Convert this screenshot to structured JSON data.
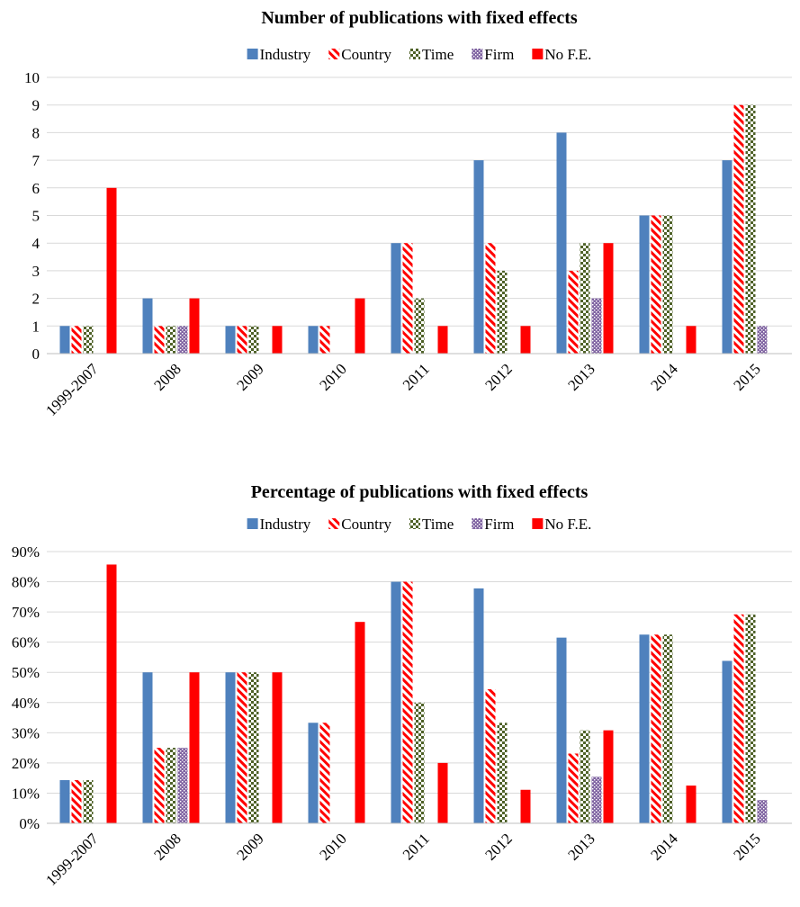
{
  "chart_data": [
    {
      "type": "bar",
      "title": "Number of publications with fixed effects",
      "xlabel": "",
      "ylabel": "",
      "categories": [
        "1999-2007",
        "2008",
        "2009",
        "2010",
        "2011",
        "2012",
        "2013",
        "2014",
        "2015"
      ],
      "series": [
        {
          "name": "Industry",
          "values": [
            1,
            2,
            1,
            1,
            4,
            7,
            8,
            5,
            7
          ],
          "color": "#4f81bd",
          "pattern": "solid"
        },
        {
          "name": "Country",
          "values": [
            1,
            1,
            1,
            1,
            4,
            4,
            3,
            5,
            9
          ],
          "color": "#ff0000",
          "pattern": "diagonal-stripes"
        },
        {
          "name": "Time",
          "values": [
            1,
            1,
            1,
            0,
            2,
            3,
            4,
            5,
            9
          ],
          "color": "#4f6228",
          "pattern": "checker"
        },
        {
          "name": "Firm",
          "values": [
            0,
            1,
            0,
            0,
            0,
            0,
            2,
            0,
            1
          ],
          "color": "#8064a2",
          "pattern": "dots"
        },
        {
          "name": "No F.E.",
          "values": [
            6,
            2,
            1,
            2,
            1,
            1,
            4,
            1,
            0
          ],
          "color": "#ff0000",
          "pattern": "solid"
        }
      ],
      "ylim": [
        0,
        10
      ],
      "yticks": [
        "0",
        "1",
        "2",
        "3",
        "4",
        "5",
        "6",
        "7",
        "8",
        "9",
        "10"
      ],
      "grid": true,
      "legend_position": "top"
    },
    {
      "type": "bar",
      "title": "Percentage of publications with fixed effects",
      "xlabel": "",
      "ylabel": "",
      "categories": [
        "1999-2007",
        "2008",
        "2009",
        "2010",
        "2011",
        "2012",
        "2013",
        "2014",
        "2015"
      ],
      "series": [
        {
          "name": "Industry",
          "values": [
            14.3,
            50,
            50,
            33.3,
            80,
            77.8,
            61.5,
            62.5,
            53.8
          ],
          "color": "#4f81bd",
          "pattern": "solid"
        },
        {
          "name": "Country",
          "values": [
            14.3,
            25,
            50,
            33.3,
            80,
            44.4,
            23.1,
            62.5,
            69.2
          ],
          "color": "#ff0000",
          "pattern": "diagonal-stripes"
        },
        {
          "name": "Time",
          "values": [
            14.3,
            25,
            50,
            0,
            40,
            33.3,
            30.8,
            62.5,
            69.2
          ],
          "color": "#4f6228",
          "pattern": "checker"
        },
        {
          "name": "Firm",
          "values": [
            0,
            25,
            0,
            0,
            0,
            0,
            15.4,
            0,
            7.7
          ],
          "color": "#8064a2",
          "pattern": "dots"
        },
        {
          "name": "No F.E.",
          "values": [
            85.7,
            50,
            50,
            66.7,
            20,
            11.1,
            30.8,
            12.5,
            0
          ],
          "color": "#ff0000",
          "pattern": "solid"
        }
      ],
      "ylim": [
        0,
        90
      ],
      "yticks": [
        "0%",
        "10%",
        "20%",
        "30%",
        "40%",
        "50%",
        "60%",
        "70%",
        "80%",
        "90%"
      ],
      "grid": true,
      "legend_position": "top"
    }
  ]
}
